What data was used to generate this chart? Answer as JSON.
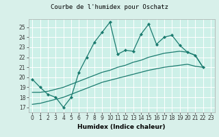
{
  "title": "Courbe de l'humidex pour Oschatz",
  "xlabel": "Humidex (Indice chaleur)",
  "bg_color": "#cdf0e8",
  "plot_bg_color": "#cdf0e8",
  "outer_bg": "#d8f0ea",
  "grid_color": "#ffffff",
  "line_color": "#1a7a6e",
  "xlim": [
    -0.5,
    23.5
  ],
  "ylim": [
    16.5,
    25.8
  ],
  "yticks": [
    17,
    18,
    19,
    20,
    21,
    22,
    23,
    24,
    25
  ],
  "xticks": [
    0,
    1,
    2,
    3,
    4,
    5,
    6,
    7,
    8,
    9,
    10,
    11,
    12,
    13,
    14,
    15,
    16,
    17,
    18,
    19,
    20,
    21,
    22,
    23
  ],
  "line1_x": [
    0,
    1,
    2,
    3,
    4,
    5,
    6,
    7,
    8,
    9,
    10,
    11,
    12,
    13,
    14,
    15,
    16,
    17,
    18,
    19,
    20,
    21,
    22
  ],
  "line1_y": [
    19.8,
    19.0,
    18.3,
    18.0,
    17.0,
    18.0,
    20.5,
    22.0,
    23.5,
    24.5,
    25.5,
    22.3,
    22.7,
    22.6,
    24.3,
    25.3,
    23.3,
    24.0,
    24.2,
    23.2,
    22.5,
    22.2,
    21.0
  ],
  "line2_x": [
    0,
    1,
    2,
    3,
    4,
    5,
    6,
    7,
    8,
    9,
    10,
    11,
    12,
    13,
    14,
    15,
    16,
    17,
    18,
    19,
    20,
    21,
    22
  ],
  "line2_y": [
    18.5,
    18.5,
    18.6,
    18.8,
    19.0,
    19.3,
    19.6,
    19.9,
    20.2,
    20.5,
    20.7,
    21.0,
    21.2,
    21.5,
    21.7,
    22.0,
    22.2,
    22.4,
    22.5,
    22.6,
    22.5,
    22.2,
    21.0
  ],
  "line3_x": [
    0,
    1,
    2,
    3,
    4,
    5,
    6,
    7,
    8,
    9,
    10,
    11,
    12,
    13,
    14,
    15,
    16,
    17,
    18,
    19,
    20,
    21,
    22
  ],
  "line3_y": [
    17.3,
    17.4,
    17.6,
    17.8,
    18.0,
    18.3,
    18.6,
    18.9,
    19.2,
    19.5,
    19.7,
    19.9,
    20.1,
    20.3,
    20.5,
    20.7,
    20.85,
    21.0,
    21.1,
    21.2,
    21.3,
    21.1,
    21.0
  ],
  "tick_fontsize": 5.5,
  "xlabel_fontsize": 6.5,
  "title_fontsize": 6.5
}
